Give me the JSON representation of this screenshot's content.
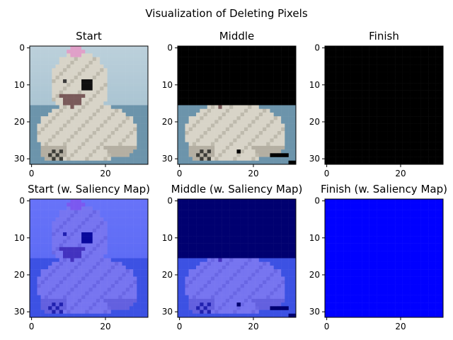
{
  "figure": {
    "title": "Visualization of Deleting Pixels"
  },
  "chart_data": {
    "type": "image_grid",
    "title": "Visualization of Deleting Pixels",
    "image_size": [
      32,
      32
    ],
    "xlim": [
      -0.5,
      31.5
    ],
    "ylim": [
      31.5,
      -0.5
    ],
    "x_ticks": [
      0,
      20
    ],
    "y_ticks": [
      0,
      10,
      20,
      30
    ],
    "colors": {
      "deleted": "#000000",
      "deleted_saliency": "#000070",
      "saliency_full": "#0000ff",
      "image_bg_dark": "#4b7a96",
      "image_bg_light": "#aac4d2",
      "fur": "#d8d4c8",
      "fur_shadow": "#8f8a7c",
      "bow": "#e0a0c8",
      "nose": "#101010",
      "mouth": "#7a5a5a"
    },
    "panels": [
      {
        "title": "Start",
        "state": "start",
        "saliency": false,
        "deleted_rows": 0
      },
      {
        "title": "Middle",
        "state": "middle",
        "saliency": false,
        "deleted_rows": 16
      },
      {
        "title": "Finish",
        "state": "finish",
        "saliency": false,
        "deleted_rows": 32
      },
      {
        "title": "Start (w. Saliency Map)",
        "state": "start",
        "saliency": true,
        "deleted_rows": 0
      },
      {
        "title": "Middle (w. Saliency Map)",
        "state": "middle",
        "saliency": true,
        "deleted_rows": 16
      },
      {
        "title": "Finish (w. Saliency Map)",
        "state": "finish",
        "saliency": true,
        "deleted_rows": 32
      }
    ]
  }
}
